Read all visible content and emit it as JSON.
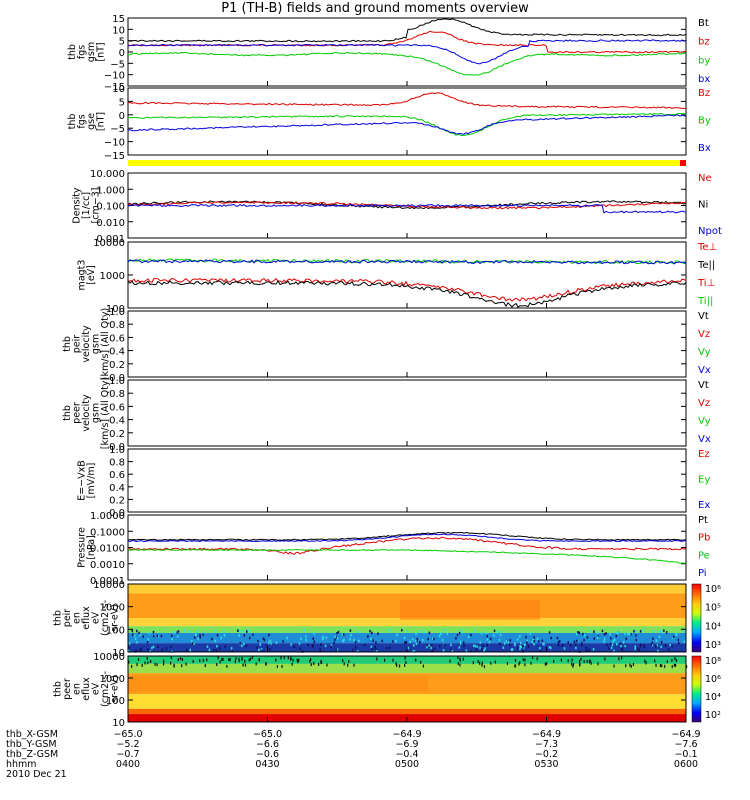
{
  "title": "P1 (TH-B) fields and ground moments overview",
  "panels": [
    {
      "id": "fgs_gsm",
      "ylabel": [
        "thb",
        "fgs",
        "gsm",
        "[nT]"
      ],
      "ticks": [
        "15",
        "10",
        "5",
        "0",
        "−5",
        "−10",
        "−15"
      ],
      "legend": [
        {
          "text": "Bt",
          "color": "#000000"
        },
        {
          "text": "bz",
          "color": "#dd0000"
        },
        {
          "text": "by",
          "color": "#00cc00"
        },
        {
          "text": "bx",
          "color": "#0000dd"
        }
      ]
    },
    {
      "id": "fgs_gse",
      "ylabel": [
        "thb",
        "fgs",
        "gse",
        "[nT]"
      ],
      "ticks": [
        "10",
        "5",
        "0",
        "−5",
        "−10",
        "−15"
      ],
      "legend": [
        {
          "text": "Bz",
          "color": "#dd0000"
        },
        {
          "text": "By",
          "color": "#00cc00"
        },
        {
          "text": "Bx",
          "color": "#0000dd"
        }
      ]
    },
    {
      "id": "density",
      "ylabel": [
        "Density",
        "[1/cc]",
        "[cm−3]"
      ],
      "ticks": [
        "10.000",
        "1.000",
        "0.100",
        "0.010",
        "0.001"
      ],
      "legend": [
        {
          "text": "Ne",
          "color": "#dd0000"
        },
        {
          "text": "Ni",
          "color": "#000000"
        },
        {
          "text": "Npot",
          "color": "#0000dd"
        }
      ]
    },
    {
      "id": "temperature",
      "ylabel": [
        "magt3",
        "[eV]"
      ],
      "ticks": [
        "10000",
        "1000",
        "100"
      ],
      "legend": [
        {
          "text": "Te⊥",
          "color": "#dd0000"
        },
        {
          "text": "Te||",
          "color": "#000000"
        },
        {
          "text": "Ti⊥",
          "color": "#dd0000"
        },
        {
          "text": "Ti||",
          "color": "#00cc00"
        }
      ]
    },
    {
      "id": "vi",
      "ylabel": [
        "thb",
        "peir",
        "velocity",
        "gsm",
        "[km/s] (All Qty)"
      ],
      "ticks": [
        "1.0",
        "0.8",
        "0.6",
        "0.4",
        "0.2",
        "0.0"
      ],
      "legend": [
        {
          "text": "Vt",
          "color": "#000000"
        },
        {
          "text": "Vz",
          "color": "#dd0000"
        },
        {
          "text": "Vy",
          "color": "#00cc00"
        },
        {
          "text": "Vx",
          "color": "#0000dd"
        }
      ]
    },
    {
      "id": "ve",
      "ylabel": [
        "thb",
        "peer",
        "velocity",
        "gsm",
        "[km/s] (All Qty)"
      ],
      "ticks": [
        "1.0",
        "0.8",
        "0.6",
        "0.4",
        "0.2",
        "0.0"
      ],
      "legend": [
        {
          "text": "Vt",
          "color": "#000000"
        },
        {
          "text": "Vz",
          "color": "#dd0000"
        },
        {
          "text": "Vy",
          "color": "#00cc00"
        },
        {
          "text": "Vx",
          "color": "#0000dd"
        }
      ]
    },
    {
      "id": "efield",
      "ylabel": [
        "E=−VxB",
        "[mV/m]"
      ],
      "ticks": [
        "1.0",
        "0.8",
        "0.6",
        "0.4",
        "0.2",
        "0.0"
      ],
      "legend": [
        {
          "text": "Ez",
          "color": "#dd0000"
        },
        {
          "text": "Ey",
          "color": "#00cc00"
        },
        {
          "text": "Ex",
          "color": "#0000dd"
        }
      ]
    },
    {
      "id": "pressure",
      "ylabel": [
        "Pressure",
        "[nPa]"
      ],
      "ticks": [
        "1.0000",
        "0.1000",
        "0.0100",
        "0.0010",
        "0.0001"
      ],
      "legend": [
        {
          "text": "Pt",
          "color": "#000000"
        },
        {
          "text": "Pb",
          "color": "#dd0000"
        },
        {
          "text": "Pe",
          "color": "#00cc00"
        },
        {
          "text": "Pi",
          "color": "#0000dd"
        }
      ]
    },
    {
      "id": "ion_spec",
      "ylabel": [
        "thb",
        "peir",
        "en",
        "eflux",
        "eV",
        "(cm2-s-",
        "sr-eV)"
      ],
      "ticks": [
        "10000",
        "1000",
        "100",
        "10"
      ],
      "colorbar": [
        "10⁶",
        "10⁵",
        "10⁴",
        "10³"
      ]
    },
    {
      "id": "ele_spec",
      "ylabel": [
        "thb",
        "peer",
        "en",
        "eflux",
        "eV",
        "(cm2-s-",
        "sr-eV)"
      ],
      "ticks": [
        "10000",
        "1000",
        "100",
        "10"
      ],
      "colorbar": [
        "10⁸",
        "10⁶",
        "10⁴",
        "10²"
      ]
    }
  ],
  "xaxis": {
    "rows": [
      {
        "label": "thb_X-GSM",
        "values": [
          "−65.0",
          "−65.0",
          "−64.9",
          "−64.9",
          "−64.9"
        ]
      },
      {
        "label": "thb_Y-GSM",
        "values": [
          "−5.2",
          "−6.6",
          "−6.9",
          "−7.3",
          "−7.6"
        ]
      },
      {
        "label": "thb_Z-GSM",
        "values": [
          "−0.7",
          "−0.6",
          "−0.4",
          "−0.2",
          "−0.1"
        ]
      },
      {
        "label": "hhmm",
        "values": [
          "0400",
          "0430",
          "0500",
          "0530",
          "0600"
        ]
      }
    ],
    "date": "2010 Dec 21"
  },
  "colors": {
    "black": "#000000",
    "red": "#dd0000",
    "green": "#00cc00",
    "blue": "#0000dd",
    "flag_yellow": "#ffff00",
    "flag_red": "#ff0000"
  },
  "chart_data": {
    "type": "line",
    "title": "P1 (TH-B) fields and ground moments overview",
    "x_range": [
      "0400",
      "0600"
    ],
    "series_summary": [
      {
        "panel": "fgs_gsm",
        "name": "Bt",
        "approx_values_nT": [
          5,
          5,
          6,
          12,
          11,
          9,
          8
        ]
      },
      {
        "panel": "fgs_gsm",
        "name": "bz",
        "approx_values_nT": [
          3,
          3,
          4,
          9,
          4,
          1,
          0
        ]
      },
      {
        "panel": "fgs_gsm",
        "name": "by",
        "approx_values_nT": [
          -1,
          -1,
          0,
          -9,
          -5,
          -1,
          -2
        ]
      },
      {
        "panel": "fgs_gsm",
        "name": "bx",
        "approx_values_nT": [
          4,
          3,
          3,
          2,
          -6,
          5,
          6
        ]
      },
      {
        "panel": "pressure",
        "name": "Pt",
        "approx_values_nPa": [
          0.03,
          0.03,
          0.04,
          0.08,
          0.06,
          0.04,
          0.03
        ]
      },
      {
        "panel": "pressure",
        "name": "Pe",
        "approx_values_nPa": [
          0.007,
          0.007,
          0.007,
          0.002,
          0.002,
          0.001,
          0.001
        ]
      }
    ],
    "grid": false,
    "legend": "right"
  }
}
